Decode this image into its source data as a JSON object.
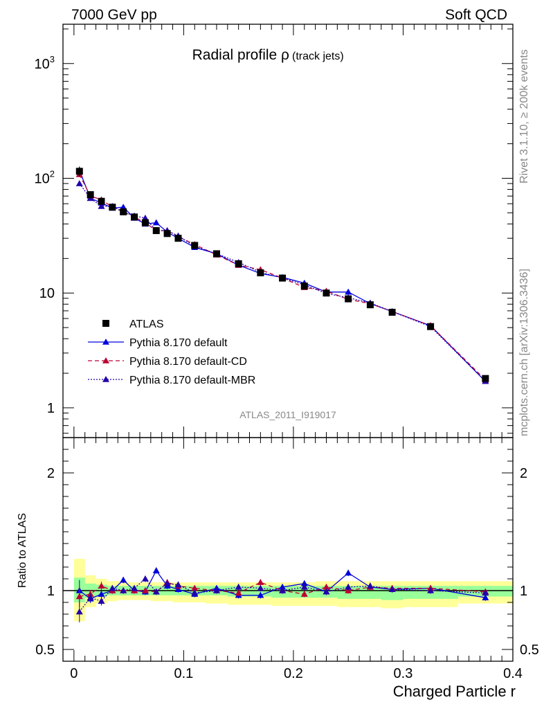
{
  "header": {
    "left": "7000 GeV pp",
    "right": "Soft QCD"
  },
  "side_labels": {
    "rivet": "Rivet 3.1.10, ≥ 200k events",
    "mcplots": "mcplots.cern.ch [arXiv:1306.3436]"
  },
  "chart_data": [
    {
      "type": "line",
      "title_main": "Radial profile ρ",
      "title_sub": "(track jets)",
      "analysis_label": "ATLAS_2011_I919017",
      "yscale": "log",
      "ylim": [
        0.55,
        2200
      ],
      "xlim": [
        -0.01,
        0.4
      ],
      "y_ticks": [
        {
          "value": 1,
          "label": "1"
        },
        {
          "value": 10,
          "label": "10"
        },
        {
          "value": 100,
          "label": "10",
          "exp": "2"
        },
        {
          "value": 1000,
          "label": "10",
          "exp": "3"
        }
      ],
      "legend": {
        "position": "middle-left"
      },
      "x": [
        0.005,
        0.015,
        0.025,
        0.035,
        0.045,
        0.055,
        0.065,
        0.075,
        0.085,
        0.095,
        0.11,
        0.13,
        0.15,
        0.17,
        0.19,
        0.21,
        0.23,
        0.25,
        0.27,
        0.29,
        0.325,
        0.375
      ],
      "series": [
        {
          "name": "ATLAS",
          "marker": "square",
          "color": "#000000",
          "values": [
            115,
            72,
            63,
            56,
            51,
            46,
            41,
            35,
            33,
            30,
            26,
            22,
            18,
            15,
            13.5,
            11.5,
            10,
            8.9,
            7.9,
            6.8,
            5.1,
            1.8
          ],
          "err_rel": [
            0.1,
            0.04,
            0.04,
            0.03,
            0.03,
            0.03,
            0.03,
            0.03,
            0.03,
            0.03,
            0.03,
            0.03,
            0.03,
            0.03,
            0.03,
            0.03,
            0.03,
            0.03,
            0.03,
            0.03,
            0.03,
            0.03
          ]
        },
        {
          "name": "Pythia 8.170 default",
          "marker": "triangle",
          "color": "#0000dd",
          "line": "solid",
          "values": [
            117,
            67,
            61,
            55,
            56,
            45,
            40,
            41,
            34,
            30,
            25,
            22,
            17.5,
            14.8,
            13.7,
            12.2,
            10.2,
            10.2,
            8.1,
            6.9,
            5.2,
            1.7
          ]
        },
        {
          "name": "Pythia 8.170 default-CD",
          "marker": "triangle",
          "color": "#bb0033",
          "line": "dashed",
          "values": [
            108,
            70,
            65,
            56,
            51,
            46,
            41,
            35,
            35,
            31,
            26.5,
            21.5,
            17.5,
            16,
            13.5,
            11.2,
            10.4,
            8.8,
            8.1,
            6.9,
            5.2,
            1.75
          ]
        },
        {
          "name": "Pythia 8.170 default-MBR",
          "marker": "triangle",
          "color": "#2200aa",
          "line": "dotted",
          "values": [
            90,
            67,
            57,
            57,
            51,
            47,
            45,
            35,
            35,
            31.5,
            25.5,
            22,
            18.5,
            15.2,
            13.5,
            11.8,
            9.9,
            9.1,
            8.2,
            6.9,
            5.1,
            1.7
          ]
        }
      ]
    },
    {
      "type": "line",
      "ylabel": "Ratio to ATLAS",
      "xlabel": "Charged Particle r",
      "ylim": [
        0.4,
        2.3
      ],
      "xlim": [
        -0.01,
        0.4
      ],
      "y_ticks": [
        {
          "value": 0.5,
          "label": "0.5"
        },
        {
          "value": 1,
          "label": "1"
        },
        {
          "value": 2,
          "label": "2"
        }
      ],
      "x_ticks": [
        {
          "value": 0,
          "label": "0"
        },
        {
          "value": 0.1,
          "label": "0.1"
        },
        {
          "value": 0.2,
          "label": "0.2"
        },
        {
          "value": 0.3,
          "label": "0.3"
        },
        {
          "value": 0.4,
          "label": "0.4"
        }
      ],
      "bands": {
        "x_edges": [
          0.0,
          0.01,
          0.02,
          0.03,
          0.04,
          0.05,
          0.06,
          0.07,
          0.08,
          0.09,
          0.1,
          0.12,
          0.14,
          0.16,
          0.18,
          0.2,
          0.22,
          0.24,
          0.26,
          0.28,
          0.3,
          0.35,
          0.4
        ],
        "yellow": [
          [
            0.74,
            1.27
          ],
          [
            0.86,
            1.13
          ],
          [
            0.89,
            1.1
          ],
          [
            0.91,
            1.08
          ],
          [
            0.92,
            1.08
          ],
          [
            0.92,
            1.07
          ],
          [
            0.92,
            1.07
          ],
          [
            0.91,
            1.07
          ],
          [
            0.91,
            1.07
          ],
          [
            0.9,
            1.07
          ],
          [
            0.9,
            1.07
          ],
          [
            0.89,
            1.07
          ],
          [
            0.88,
            1.07
          ],
          [
            0.88,
            1.07
          ],
          [
            0.87,
            1.07
          ],
          [
            0.87,
            1.07
          ],
          [
            0.87,
            1.08
          ],
          [
            0.86,
            1.08
          ],
          [
            0.86,
            1.08
          ],
          [
            0.85,
            1.08
          ],
          [
            0.86,
            1.08
          ],
          [
            0.89,
            1.08
          ]
        ],
        "green": [
          [
            0.9,
            1.11
          ],
          [
            0.94,
            1.06
          ],
          [
            0.95,
            1.05
          ],
          [
            0.96,
            1.04
          ],
          [
            0.96,
            1.04
          ],
          [
            0.96,
            1.04
          ],
          [
            0.96,
            1.04
          ],
          [
            0.96,
            1.04
          ],
          [
            0.96,
            1.04
          ],
          [
            0.96,
            1.04
          ],
          [
            0.96,
            1.04
          ],
          [
            0.96,
            1.04
          ],
          [
            0.95,
            1.04
          ],
          [
            0.95,
            1.04
          ],
          [
            0.94,
            1.04
          ],
          [
            0.94,
            1.04
          ],
          [
            0.94,
            1.04
          ],
          [
            0.93,
            1.04
          ],
          [
            0.93,
            1.04
          ],
          [
            0.92,
            1.04
          ],
          [
            0.93,
            1.04
          ],
          [
            0.95,
            1.04
          ]
        ]
      },
      "series": [
        {
          "name": "Pythia 8.170 default",
          "color": "#0000dd",
          "line": "solid",
          "values": [
            1.0,
            0.93,
            0.97,
            1.0,
            1.09,
            1.0,
            0.99,
            1.17,
            1.04,
            1.01,
            0.97,
            1.02,
            0.96,
            0.96,
            1.03,
            1.06,
            0.99,
            1.15,
            1.03,
            1.01,
            1.02,
            0.94
          ]
        },
        {
          "name": "Pythia 8.170 default-CD",
          "color": "#bb0033",
          "line": "dashed",
          "values": [
            0.95,
            0.97,
            1.04,
            1.0,
            1.0,
            1.0,
            1.0,
            0.99,
            1.07,
            1.04,
            1.02,
            1.0,
            0.98,
            1.07,
            1.0,
            0.97,
            1.03,
            1.0,
            1.03,
            1.02,
            1.02,
            0.99
          ]
        },
        {
          "name": "Pythia 8.170 default-MBR",
          "color": "#2200aa",
          "line": "dotted",
          "values": [
            0.82,
            0.94,
            0.91,
            1.02,
            1.0,
            1.02,
            1.1,
            0.99,
            1.06,
            1.05,
            0.98,
            1.0,
            1.03,
            1.02,
            1.0,
            1.03,
            0.99,
            1.03,
            1.04,
            1.01,
            1.0,
            0.98
          ]
        }
      ]
    }
  ]
}
